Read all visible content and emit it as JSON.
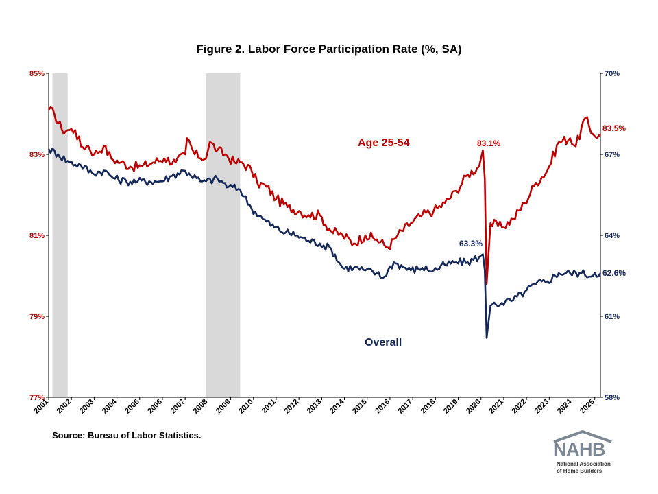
{
  "chart_data": {
    "type": "line",
    "title": "Figure 2. Labor Force Participation Rate (%, SA)",
    "source": "Source: Bureau of Labor Statistics.",
    "x_range": [
      "2001-01",
      "2025-04"
    ],
    "x_tick_labels": [
      "2001",
      "2002",
      "2003",
      "2004",
      "2005",
      "2006",
      "2007",
      "2008",
      "2009",
      "2010",
      "2011",
      "2012",
      "2013",
      "2014",
      "2015",
      "2016",
      "2017",
      "2018",
      "2019",
      "2020",
      "2021",
      "2022",
      "2023",
      "2024",
      "2025"
    ],
    "y_left": {
      "series": "Age 25-54",
      "ylim": [
        77,
        85
      ],
      "ticks": [
        "77%",
        "79%",
        "81%",
        "83%",
        "85%"
      ]
    },
    "y_right": {
      "series": "Overall",
      "ylim": [
        58,
        70
      ],
      "ticks": [
        "58%",
        "61%",
        "64%",
        "67%",
        "70%"
      ]
    },
    "recessions": [
      [
        "2001-03",
        "2001-11"
      ],
      [
        "2007-12",
        "2009-06"
      ]
    ],
    "colors": {
      "age_25_54": "#c00000",
      "overall": "#14285a",
      "recession": "#d9d9d9"
    },
    "series": [
      {
        "name": "Age 25-54",
        "axis": "left",
        "label": "Age 25-54",
        "end_label": "83.5%",
        "peak_label": "83.1%",
        "points": [
          [
            "2001-01",
            84.1
          ],
          [
            "2001-04",
            84.0
          ],
          [
            "2001-08",
            83.6
          ],
          [
            "2001-12",
            83.6
          ],
          [
            "2002-03",
            83.6
          ],
          [
            "2002-06",
            83.2
          ],
          [
            "2002-10",
            83.2
          ],
          [
            "2003-01",
            83.0
          ],
          [
            "2003-06",
            83.2
          ],
          [
            "2003-10",
            82.9
          ],
          [
            "2004-03",
            82.8
          ],
          [
            "2004-08",
            82.7
          ],
          [
            "2005-02",
            82.7
          ],
          [
            "2005-08",
            82.8
          ],
          [
            "2006-02",
            82.9
          ],
          [
            "2006-08",
            82.8
          ],
          [
            "2007-01",
            83.0
          ],
          [
            "2007-02",
            83.4
          ],
          [
            "2007-06",
            83.0
          ],
          [
            "2007-12",
            82.9
          ],
          [
            "2008-02",
            83.3
          ],
          [
            "2008-06",
            83.1
          ],
          [
            "2008-10",
            83.0
          ],
          [
            "2009-03",
            82.8
          ],
          [
            "2009-07",
            82.8
          ],
          [
            "2009-12",
            82.6
          ],
          [
            "2010-03",
            82.3
          ],
          [
            "2010-08",
            82.2
          ],
          [
            "2011-01",
            81.9
          ],
          [
            "2011-07",
            81.7
          ],
          [
            "2012-01",
            81.6
          ],
          [
            "2012-06",
            81.5
          ],
          [
            "2012-12",
            81.5
          ],
          [
            "2013-06",
            81.1
          ],
          [
            "2013-12",
            81.0
          ],
          [
            "2014-06",
            80.8
          ],
          [
            "2014-12",
            81.0
          ],
          [
            "2015-06",
            80.9
          ],
          [
            "2015-12",
            80.7
          ],
          [
            "2016-05",
            81.0
          ],
          [
            "2016-12",
            81.3
          ],
          [
            "2017-06",
            81.5
          ],
          [
            "2017-12",
            81.6
          ],
          [
            "2018-06",
            81.8
          ],
          [
            "2018-12",
            82.1
          ],
          [
            "2019-06",
            82.5
          ],
          [
            "2019-12",
            82.7
          ],
          [
            "2020-02",
            83.1
          ],
          [
            "2020-03",
            82.4
          ],
          [
            "2020-04",
            79.8
          ],
          [
            "2020-06",
            81.3
          ],
          [
            "2020-12",
            81.2
          ],
          [
            "2021-06",
            81.4
          ],
          [
            "2021-12",
            81.8
          ],
          [
            "2022-06",
            82.3
          ],
          [
            "2022-12",
            82.6
          ],
          [
            "2023-06",
            83.3
          ],
          [
            "2023-12",
            83.4
          ],
          [
            "2024-03",
            83.2
          ],
          [
            "2024-08",
            83.9
          ],
          [
            "2024-12",
            83.5
          ],
          [
            "2025-02",
            83.4
          ],
          [
            "2025-04",
            83.5
          ]
        ]
      },
      {
        "name": "Overall",
        "axis": "right",
        "label": "Overall",
        "end_label": "62.6%",
        "peak_label": "63.3%",
        "points": [
          [
            "2001-01",
            67.2
          ],
          [
            "2001-06",
            67.0
          ],
          [
            "2001-12",
            66.7
          ],
          [
            "2002-06",
            66.6
          ],
          [
            "2002-12",
            66.3
          ],
          [
            "2003-06",
            66.4
          ],
          [
            "2003-12",
            66.1
          ],
          [
            "2004-06",
            66.0
          ],
          [
            "2004-12",
            66.0
          ],
          [
            "2005-06",
            66.0
          ],
          [
            "2005-12",
            66.0
          ],
          [
            "2006-06",
            66.2
          ],
          [
            "2006-12",
            66.4
          ],
          [
            "2007-03",
            66.3
          ],
          [
            "2007-09",
            66.0
          ],
          [
            "2007-12",
            66.0
          ],
          [
            "2008-06",
            66.1
          ],
          [
            "2008-12",
            65.8
          ],
          [
            "2009-06",
            65.7
          ],
          [
            "2009-12",
            65.0
          ],
          [
            "2010-06",
            64.6
          ],
          [
            "2010-12",
            64.3
          ],
          [
            "2011-06",
            64.1
          ],
          [
            "2011-12",
            64.0
          ],
          [
            "2012-06",
            63.8
          ],
          [
            "2012-12",
            63.7
          ],
          [
            "2013-06",
            63.5
          ],
          [
            "2013-12",
            62.8
          ],
          [
            "2014-06",
            62.8
          ],
          [
            "2014-12",
            62.7
          ],
          [
            "2015-06",
            62.6
          ],
          [
            "2015-09",
            62.4
          ],
          [
            "2016-03",
            63.0
          ],
          [
            "2016-12",
            62.7
          ],
          [
            "2017-06",
            62.8
          ],
          [
            "2017-12",
            62.7
          ],
          [
            "2018-06",
            62.9
          ],
          [
            "2018-12",
            63.0
          ],
          [
            "2019-06",
            63.0
          ],
          [
            "2019-12",
            63.2
          ],
          [
            "2020-02",
            63.3
          ],
          [
            "2020-03",
            62.7
          ],
          [
            "2020-04",
            60.2
          ],
          [
            "2020-06",
            61.4
          ],
          [
            "2020-12",
            61.5
          ],
          [
            "2021-06",
            61.6
          ],
          [
            "2021-12",
            61.9
          ],
          [
            "2022-06",
            62.2
          ],
          [
            "2022-12",
            62.3
          ],
          [
            "2023-06",
            62.6
          ],
          [
            "2023-12",
            62.6
          ],
          [
            "2024-06",
            62.6
          ],
          [
            "2024-12",
            62.5
          ],
          [
            "2025-01",
            62.6
          ],
          [
            "2025-04",
            62.6
          ]
        ]
      }
    ]
  },
  "logo": {
    "text": "NAHB",
    "sub_line_1": "National Association",
    "sub_line_2": "of Home Builders"
  }
}
